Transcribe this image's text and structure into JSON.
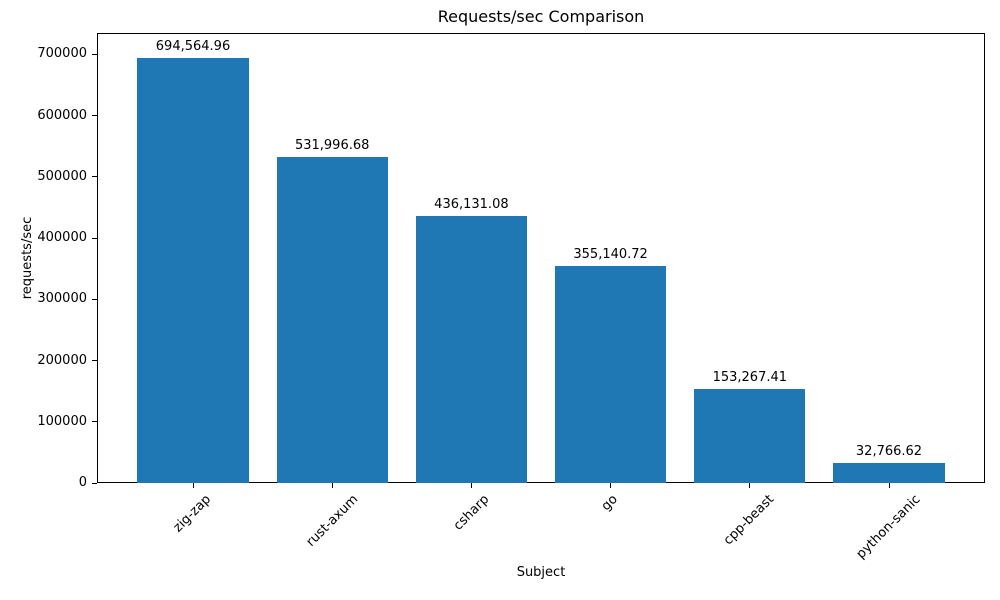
{
  "chart_data": {
    "type": "bar",
    "title": "Requests/sec Comparison",
    "xlabel": "Subject",
    "ylabel": "requests/sec",
    "categories": [
      "zig-zap",
      "rust-axum",
      "csharp",
      "go",
      "cpp-beast",
      "python-sanic"
    ],
    "values": [
      694564.96,
      531996.68,
      436131.08,
      355140.72,
      153267.41,
      32766.62
    ],
    "value_labels": [
      "694,564.96",
      "531,996.68",
      "436,131.08",
      "355,140.72",
      "153,267.41",
      "32,766.62"
    ],
    "yticks": [
      0,
      100000,
      200000,
      300000,
      400000,
      500000,
      600000,
      700000
    ],
    "ytick_labels": [
      "0",
      "100000",
      "200000",
      "300000",
      "400000",
      "500000",
      "600000",
      "700000"
    ],
    "ylim": [
      0,
      735000
    ],
    "bar_color": "#1f77b4",
    "grid": false,
    "legend": false,
    "x_tick_rotation_deg": 45
  }
}
